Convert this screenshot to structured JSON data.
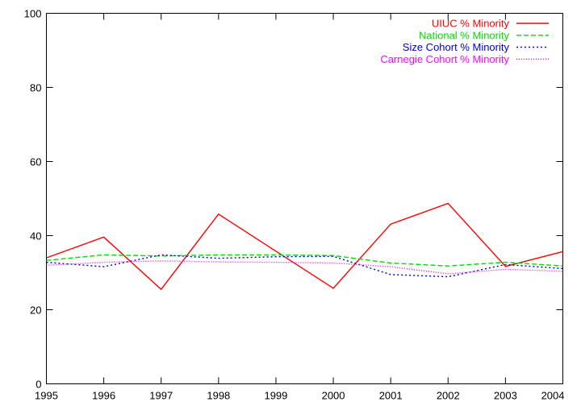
{
  "chart_data": {
    "type": "line",
    "title": "",
    "xlabel": "",
    "ylabel": "",
    "x": [
      1995,
      1996,
      1997,
      1998,
      1999,
      2000,
      2001,
      2002,
      2003,
      2004
    ],
    "xlim": [
      1995,
      2004
    ],
    "ylim": [
      0,
      100
    ],
    "yticks": [
      0,
      20,
      40,
      60,
      80,
      100
    ],
    "xticks": [
      1995,
      1996,
      1997,
      1998,
      1999,
      2000,
      2001,
      2002,
      2003,
      2004
    ],
    "grid": false,
    "legend_position": "top-right",
    "series": [
      {
        "name": "UIUC % Minority",
        "color": "#ff0000",
        "dash": "solid",
        "values": [
          34.0,
          39.6,
          25.5,
          45.8,
          35.8,
          25.8,
          43.1,
          48.7,
          31.7,
          35.7
        ]
      },
      {
        "name": "National % Minority",
        "color": "#00dd00",
        "dash": "dashed",
        "values": [
          33.3,
          34.8,
          34.5,
          34.8,
          34.8,
          34.6,
          32.6,
          31.8,
          32.8,
          31.8
        ]
      },
      {
        "name": "Size Cohort % Minority",
        "color": "#0000cc",
        "dash": "dotted",
        "values": [
          32.8,
          31.6,
          34.8,
          33.9,
          34.3,
          34.4,
          29.5,
          28.9,
          32.2,
          31.1
        ]
      },
      {
        "name": "Carnegie Cohort % Minority",
        "color": "#ff00ff",
        "dash": "fine-dotted",
        "values": [
          32.0,
          32.8,
          33.2,
          32.9,
          32.8,
          32.6,
          31.6,
          29.7,
          30.9,
          30.4
        ]
      }
    ]
  }
}
